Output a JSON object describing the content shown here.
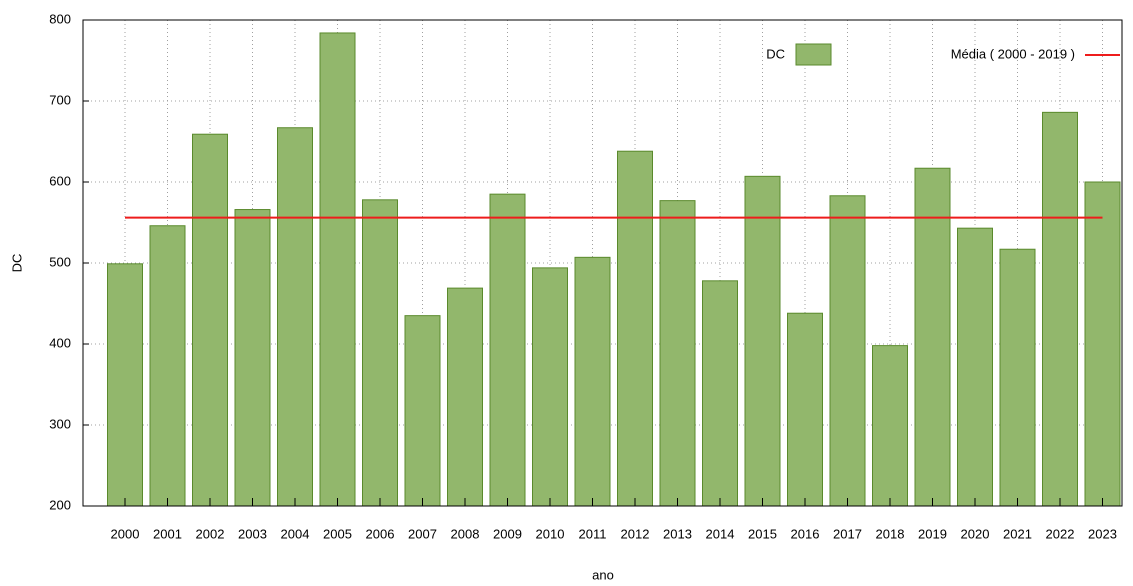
{
  "chart_data": {
    "type": "bar",
    "categories": [
      "2000",
      "2001",
      "2002",
      "2003",
      "2004",
      "2005",
      "2006",
      "2007",
      "2008",
      "2009",
      "2010",
      "2011",
      "2012",
      "2013",
      "2014",
      "2015",
      "2016",
      "2017",
      "2018",
      "2019",
      "2020",
      "2021",
      "2022",
      "2023"
    ],
    "series": [
      {
        "name": "DC",
        "color": "#92b76c",
        "values": [
          499,
          546,
          659,
          566,
          667,
          784,
          578,
          435,
          469,
          585,
          494,
          507,
          638,
          577,
          478,
          607,
          438,
          583,
          398,
          617,
          543,
          517,
          686,
          600
        ]
      }
    ],
    "mean_line": {
      "name": "Média ( 2000 - 2019 )",
      "color": "#ee1c1c",
      "value": 556
    },
    "x_label": "ano",
    "y_label": "DC",
    "ylim": [
      200,
      800
    ],
    "yticks": [
      200,
      300,
      400,
      500,
      600,
      700,
      800
    ],
    "grid": true,
    "legend": "top-right"
  }
}
